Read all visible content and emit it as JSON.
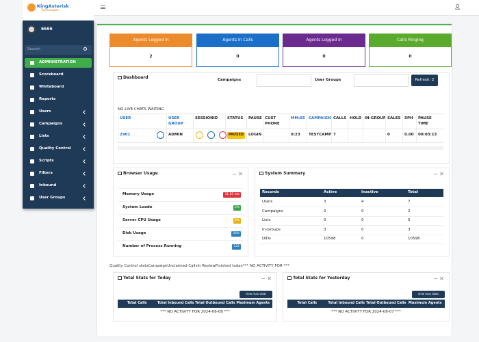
{
  "logo": {
    "name": "KingAsterisk",
    "tagline": "Technologies"
  },
  "user": "6666",
  "search_placeholder": "Search",
  "menu": [
    {
      "label": "ADMINISTRATION",
      "active": true
    },
    {
      "label": "Scoreboard"
    },
    {
      "label": "Whiteboard"
    },
    {
      "label": "Reports"
    },
    {
      "label": "Users",
      "submenu": true
    },
    {
      "label": "Campaigns",
      "submenu": true
    },
    {
      "label": "Lists",
      "submenu": true
    },
    {
      "label": "Quality Control",
      "submenu": true
    },
    {
      "label": "Scripts",
      "submenu": true
    },
    {
      "label": "Filters",
      "submenu": true
    },
    {
      "label": "Inbound",
      "submenu": true
    },
    {
      "label": "User Groups",
      "submenu": true
    }
  ],
  "stat_boxes": [
    {
      "label": "Agents Logged In",
      "value": "2",
      "color": "#ec8b2c"
    },
    {
      "label": "Agents In Calls",
      "value": "0",
      "color": "#1b6fc8"
    },
    {
      "label": "Agents Logged In",
      "value": "0",
      "color": "#6b2a8e"
    },
    {
      "label": "Calls Ringing",
      "value": "0",
      "color": "#5aab2d"
    }
  ],
  "dashboard": {
    "title": "Dashboard",
    "campaigns_label": "Campaigns",
    "user_groups_label": "User Groups",
    "refresh": "Refresh: 2",
    "chat_status": "NO LIVE CHATS WAITING",
    "columns": [
      {
        "label": "USER",
        "highlight": true
      },
      {
        "label": "USER GROUP",
        "highlight": true
      },
      {
        "label": "SESSIONID"
      },
      {
        "label": "STATUS"
      },
      {
        "label": "PAUSE"
      },
      {
        "label": "CUST PHONE"
      },
      {
        "label": "MM:SS",
        "highlight": true
      },
      {
        "label": "CAMPAIGN",
        "highlight": true
      },
      {
        "label": "CALLS"
      },
      {
        "label": "HOLD"
      },
      {
        "label": "IN-GROUP"
      },
      {
        "label": "SALES"
      },
      {
        "label": "SPH"
      },
      {
        "label": "PAUSE TIME"
      }
    ],
    "rows": [
      [
        "2901",
        "ADMIN",
        null,
        "PAUSED",
        "LOGIN",
        null,
        "0:23",
        "TESTCAMP",
        "7",
        null,
        null,
        "0",
        "0.00",
        "00:03:13"
      ]
    ]
  },
  "browser_usage": {
    "title": "Browser Usage",
    "items": [
      {
        "label": "Memory Usage",
        "value": "31.83 mb",
        "color": "#d9363e"
      },
      {
        "label": "System Loade",
        "value": "0%",
        "color": "#3aa64a"
      },
      {
        "label": "Server CPU Usage",
        "value": "8%",
        "color": "#e7b416"
      },
      {
        "label": "Disk Usage",
        "value": "38%",
        "color": "#2f7fc1"
      },
      {
        "label": "Number of Process Running",
        "value": "122",
        "color": "#2f7fc1"
      }
    ]
  },
  "system_summary": {
    "title": "System Summary",
    "columns": [
      "Records",
      "Active",
      "Inactive",
      "Total"
    ],
    "rows": [
      [
        "Users",
        "3",
        "4",
        "7"
      ],
      [
        "Campaigns",
        "2",
        "0",
        "2"
      ],
      [
        "Lists",
        "0",
        "0",
        "0"
      ],
      [
        "In-Groups",
        "3",
        "0",
        "3"
      ],
      [
        "DIDs",
        "10598",
        "0",
        "10598"
      ]
    ]
  },
  "qc_line": "Quality Control statsCampaignUnclaimed CallsIn ReviewFinished today*** NO ACTIVITY FOR  ***",
  "stats_today": {
    "title": "Total Stats for Today",
    "button": "view max stats",
    "columns": [
      "Total Calls",
      "Total Inbound Calls",
      "Total Outbound Calls",
      "Maximum Agents"
    ],
    "message": "*** NO ACTIVITY FOR 2024-08-08 ***"
  },
  "stats_yesterday": {
    "title": "Total Stats for Yesterday",
    "button": "view max stats",
    "columns": [
      "Total Calls",
      "Total Inbound Calls",
      "Total Outbound Calls",
      "Maximum Agents"
    ],
    "message": "*** NO ACTIVITY FOR 2024-08-07 ***"
  }
}
